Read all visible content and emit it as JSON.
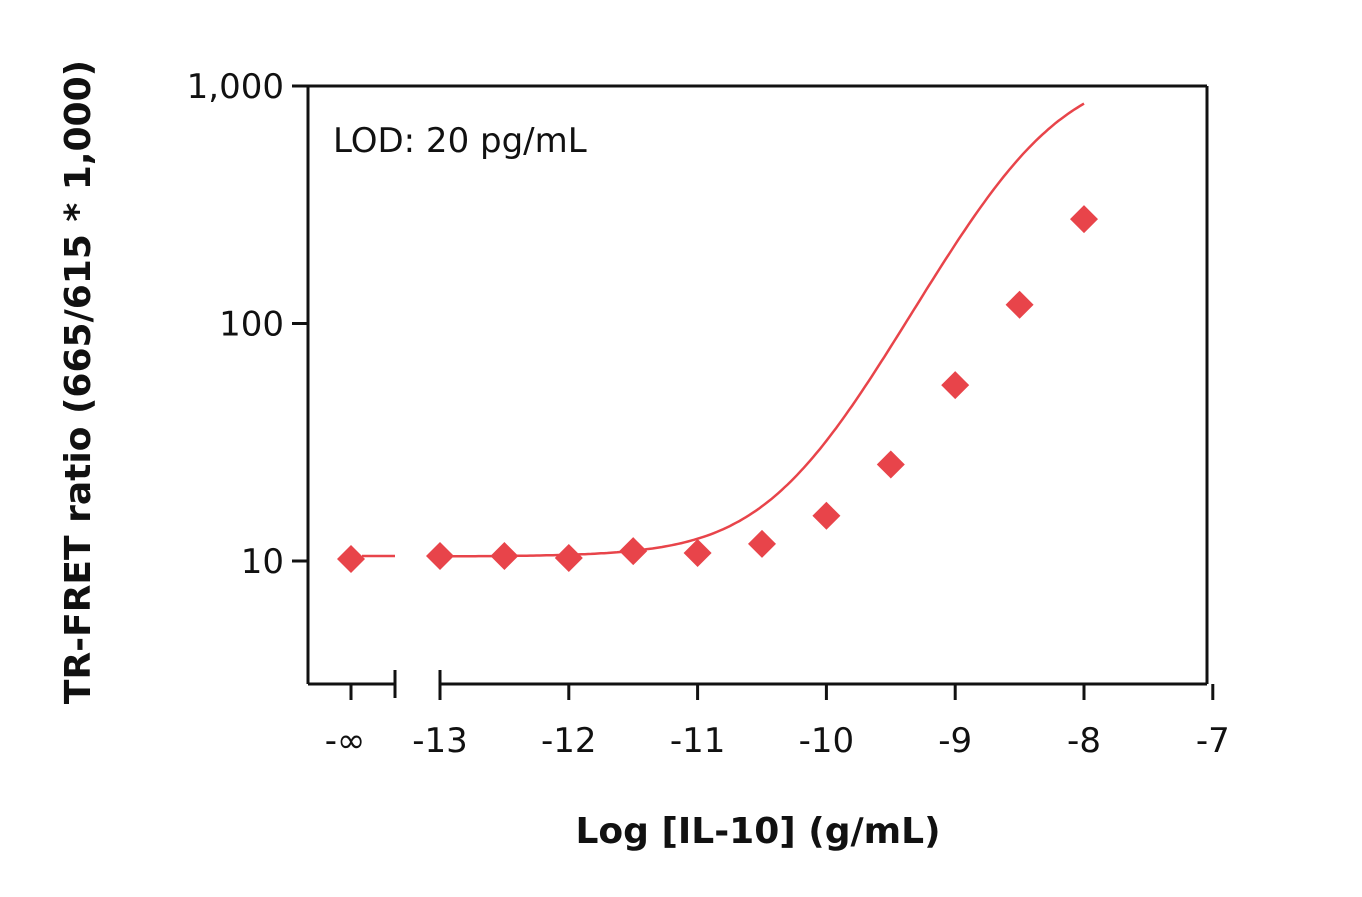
{
  "chart_data": {
    "type": "scatter",
    "title": "",
    "xlabel": "Log [IL-10] (g/mL)",
    "ylabel": "TR-FRET ratio (665/615 * 1,000)",
    "y_scale": "log",
    "ylim": [
      3,
      1000
    ],
    "y_ticks": [
      10,
      100,
      1000
    ],
    "y_tick_labels": [
      "10",
      "100",
      "1,000"
    ],
    "xlim": [
      -13,
      -7
    ],
    "x_ticks": [
      -13,
      -12,
      -11,
      -10,
      -9,
      -8,
      -7
    ],
    "x_tick_labels": [
      "-13",
      "-12",
      "-11",
      "-10",
      "-9",
      "-8",
      "-7"
    ],
    "x_break_label": "-∞",
    "annotation": "LOD: 20 pg/mL",
    "color": "#e8444a",
    "marker": "diamond",
    "fit_curve": true,
    "grid": false,
    "legend": "none",
    "zero_point": {
      "x_label": "-∞",
      "y": 10.2
    },
    "series": [
      {
        "x": [
          -13,
          -12.5,
          -12,
          -11.5,
          -11,
          -10.5,
          -10,
          -9.5,
          -9,
          -8.5,
          -8
        ],
        "y": [
          10.5,
          10.5,
          10.3,
          11,
          10.8,
          11.8,
          15.5,
          25.5,
          55,
          120,
          275
        ]
      }
    ]
  }
}
